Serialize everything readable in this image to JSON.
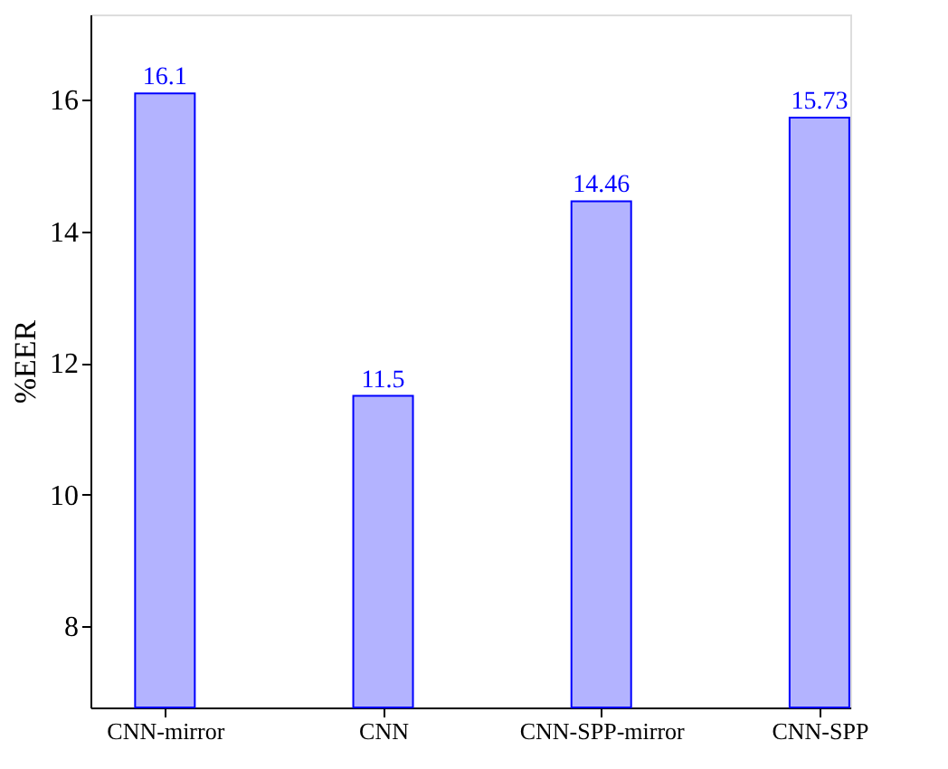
{
  "chart_data": {
    "type": "bar",
    "ylabel": "%EER",
    "categories": [
      "CNN-mirror",
      "CNN",
      "CNN-SPP-mirror",
      "CNN-SPP"
    ],
    "series": [
      {
        "color": "#b3b3ff",
        "values": [
          16.1,
          11.5,
          14.46,
          15.73
        ]
      }
    ],
    "ylim": [
      6.76,
      17.3
    ],
    "yticks": [
      8,
      10,
      12,
      14,
      16
    ],
    "data_labels": true,
    "grid": false
  }
}
